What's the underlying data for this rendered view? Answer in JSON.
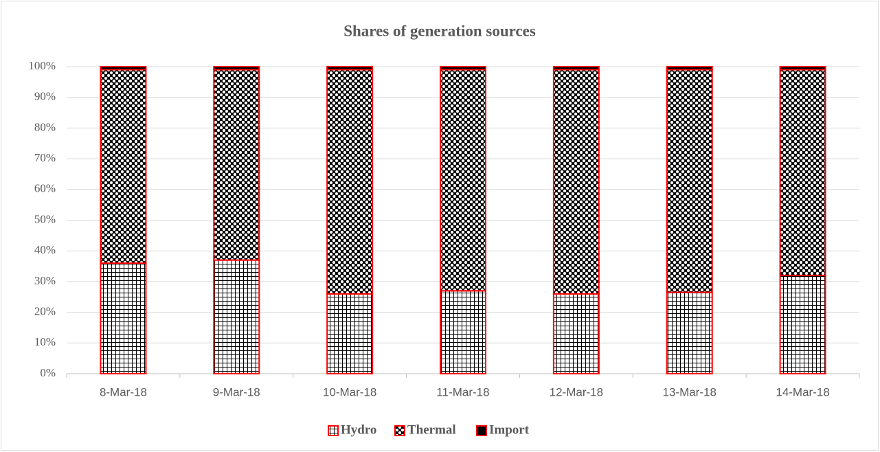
{
  "chart_data": {
    "type": "stacked_bar",
    "title": "Shares of  generation sources",
    "categories": [
      "8-Mar-18",
      "9-Mar-18",
      "10-Mar-18",
      "11-Mar-18",
      "12-Mar-18",
      "13-Mar-18",
      "14-Mar-18"
    ],
    "series": [
      {
        "name": "Hydro",
        "color": "#000000",
        "pattern": "grid",
        "values": [
          36,
          37,
          26,
          27,
          26,
          26.5,
          32
        ]
      },
      {
        "name": "Thermal",
        "color": "#000000",
        "pattern": "dots",
        "values": [
          63,
          62,
          73,
          72,
          73,
          72.5,
          67
        ]
      },
      {
        "name": "Import",
        "color": "#000000",
        "pattern": "solid",
        "values": [
          1,
          1,
          1,
          1,
          1,
          1,
          1
        ]
      }
    ],
    "edge_color": "#ff0000",
    "ylim": [
      0,
      100
    ],
    "yticks": [
      {
        "value": 0,
        "label": "0%"
      },
      {
        "value": 10,
        "label": "10%"
      },
      {
        "value": 20,
        "label": "20%"
      },
      {
        "value": 30,
        "label": "30%"
      },
      {
        "value": 40,
        "label": "40%"
      },
      {
        "value": 50,
        "label": "50%"
      },
      {
        "value": 60,
        "label": "60%"
      },
      {
        "value": 70,
        "label": "70%"
      },
      {
        "value": 80,
        "label": "80%"
      },
      {
        "value": 90,
        "label": "90%"
      },
      {
        "value": 100,
        "label": "100%"
      }
    ],
    "grid": true,
    "legend": "bottom"
  }
}
